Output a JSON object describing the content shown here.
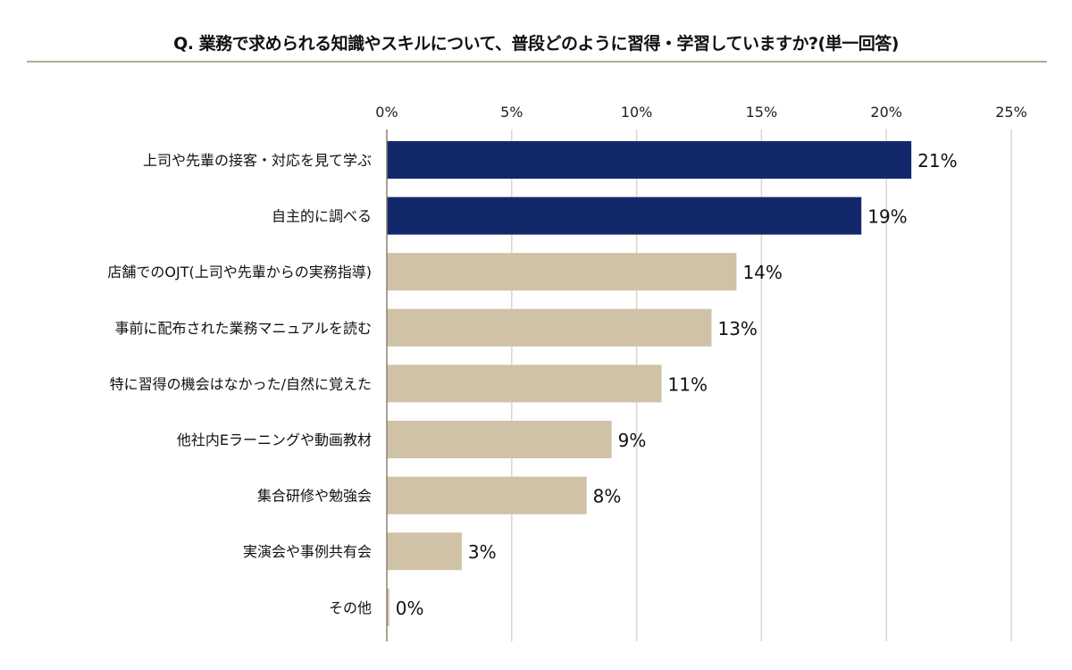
{
  "title": "Q. 業務で求められる知識やスキルについて、普段どのように習得・学習していますか?(単一回答)",
  "chart_data": {
    "type": "bar",
    "orientation": "horizontal",
    "title": "Q. 業務で求められる知識やスキルについて、普段どのように習得・学習していますか?(単一回答)",
    "categories": [
      "上司や先輩の接客・対応を見て学ぶ",
      "自主的に調べる",
      "店舗でのOJT(上司や先輩からの実務指導)",
      "事前に配布された業務マニュアルを読む",
      "特に習得の機会はなかった/自然に覚えた",
      "他社内Eラーニングや動画教材",
      "集合研修や勉強会",
      "実演会や事例共有会",
      "その他"
    ],
    "values": [
      21,
      19,
      14,
      13,
      11,
      9,
      8,
      3,
      0.1
    ],
    "data_labels": [
      "21%",
      "19%",
      "14%",
      "13%",
      "11%",
      "9%",
      "8%",
      "3%",
      "0%"
    ],
    "xlim": [
      0,
      25
    ],
    "x_ticks": [
      0,
      5,
      10,
      15,
      20,
      25
    ],
    "x_tick_labels": [
      "0%",
      "5%",
      "10%",
      "15%",
      "20%",
      "25%"
    ],
    "x_axis_position": "top",
    "grid": true,
    "colors": {
      "highlight": "#13286b",
      "default": "#cfc2a6",
      "grid": "#ddd6c8",
      "axis": "#8a8272"
    },
    "highlight_count": 2
  }
}
